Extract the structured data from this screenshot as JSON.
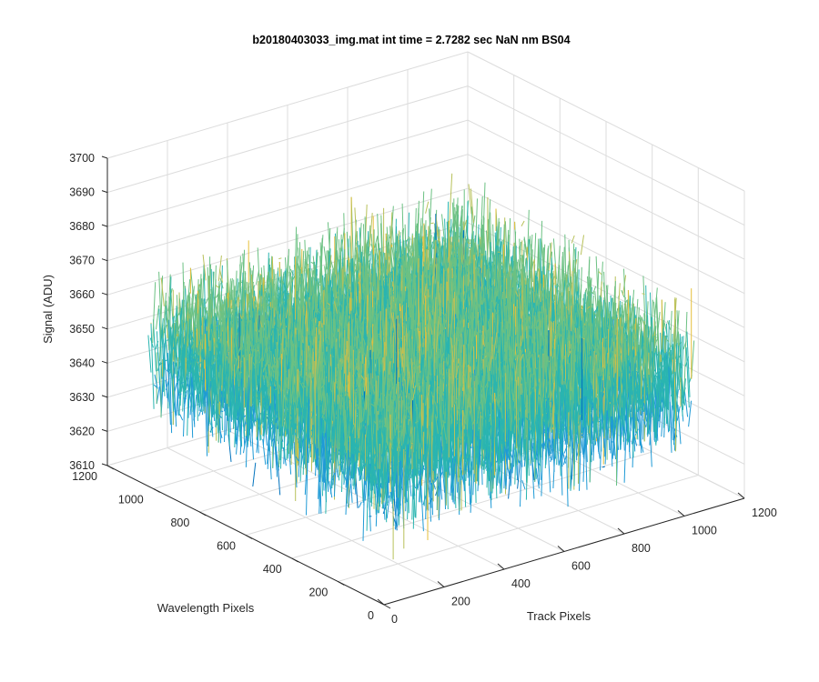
{
  "chart_data": {
    "type": "surface",
    "title": "b20180403033_img.mat int time = 2.7282 sec  NaN nm BS04",
    "xlabel": "Track Pixels",
    "ylabel": "Wavelength Pixels",
    "zlabel": "Signal (ADU)",
    "xlim": [
      0,
      1200
    ],
    "ylim": [
      0,
      1200
    ],
    "zlim": [
      3610,
      3700
    ],
    "x_ticks": [
      "0",
      "200",
      "400",
      "600",
      "800",
      "1000",
      "1200"
    ],
    "y_ticks": [
      "0",
      "200",
      "400",
      "600",
      "800",
      "1000",
      "1200"
    ],
    "z_ticks": [
      "3610",
      "3620",
      "3630",
      "3640",
      "3650",
      "3660",
      "3670",
      "3680",
      "3690",
      "3700"
    ],
    "grid": true,
    "colormap": [
      "#0072bd",
      "#1e9ad6",
      "#2ab5b0",
      "#6cc183",
      "#b8c15a",
      "#e6bf3a"
    ],
    "surface_summary": {
      "data_extent_x": [
        1,
        1024
      ],
      "data_extent_y": [
        1,
        1024
      ],
      "mean_signal": 3650,
      "noise_range": [
        3620,
        3690
      ]
    }
  }
}
